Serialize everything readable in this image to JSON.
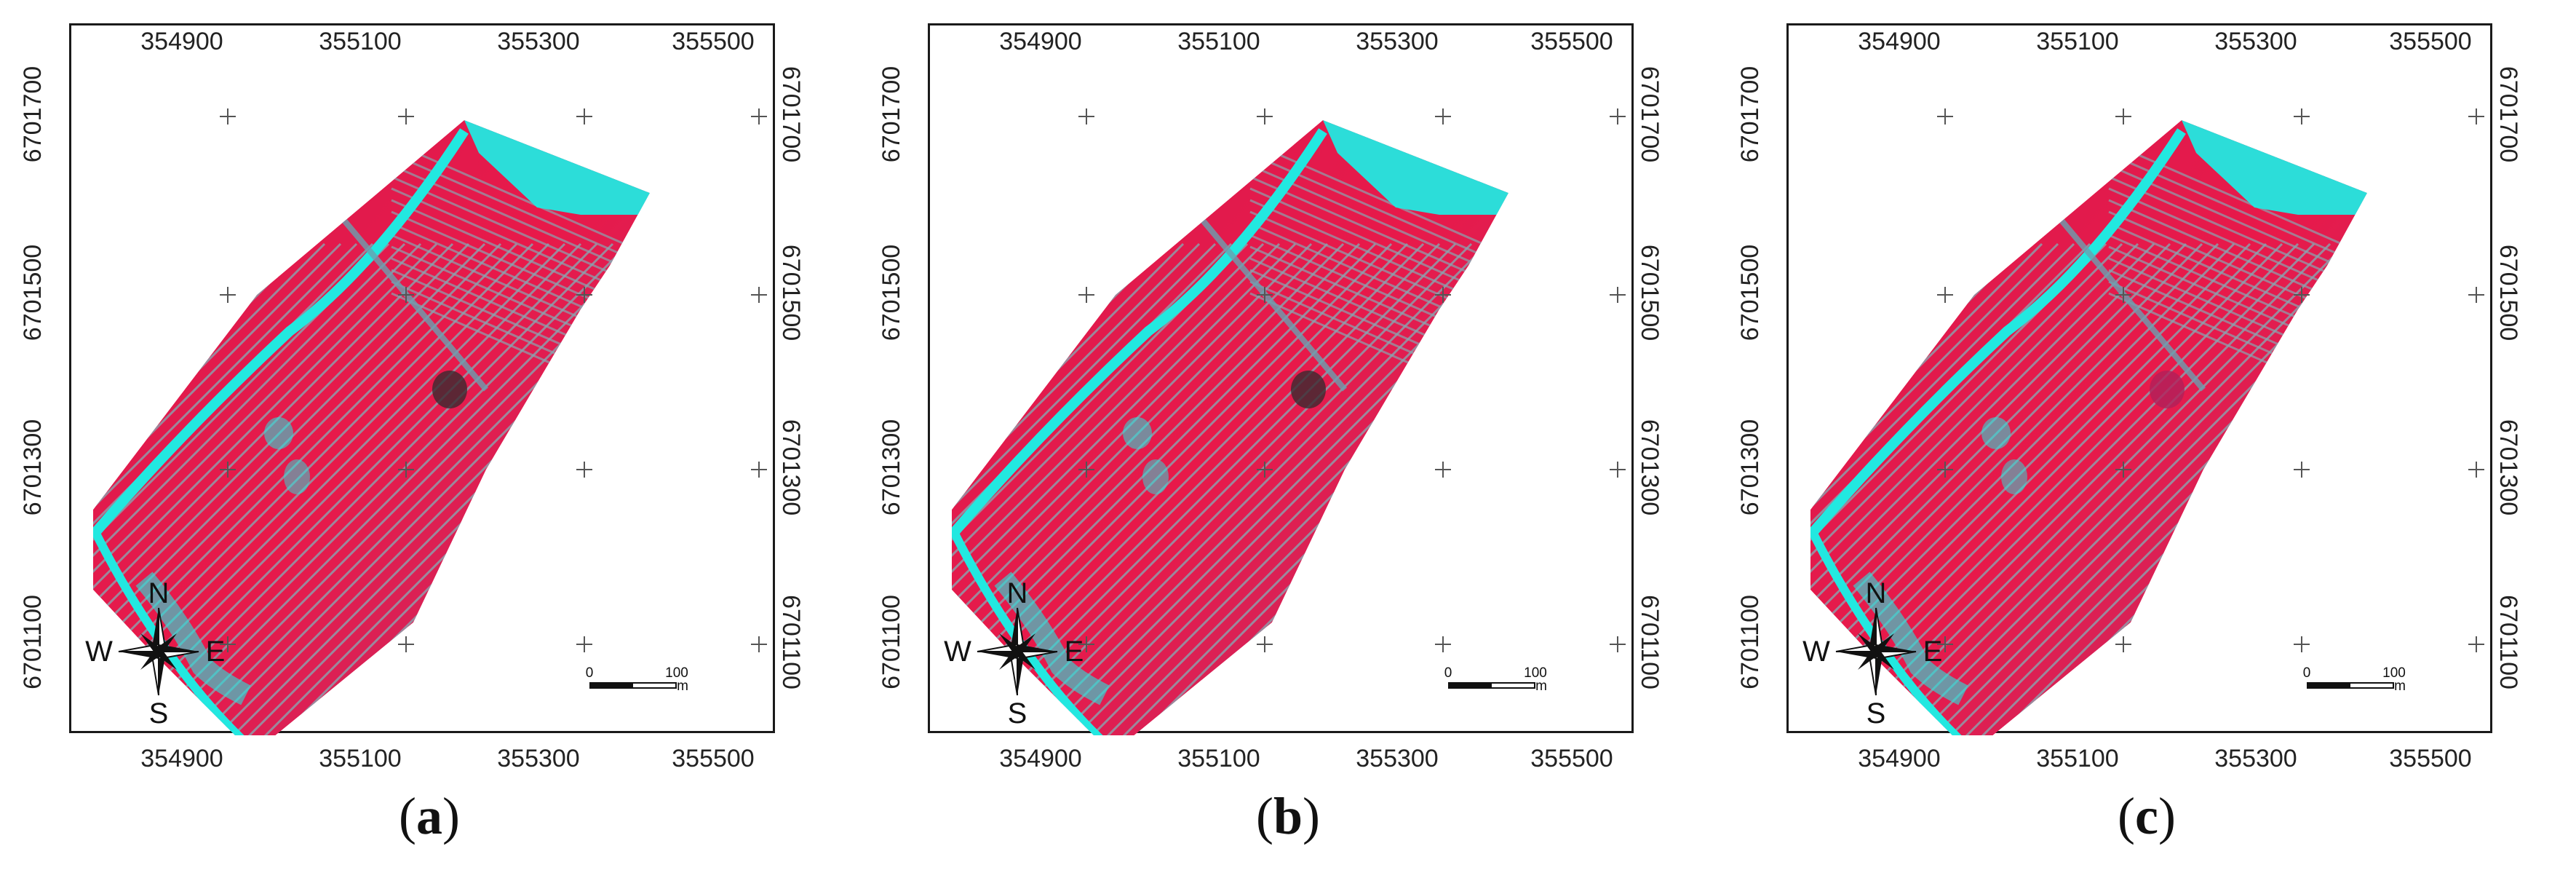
{
  "panels": [
    {
      "caption_open": "(",
      "caption_letter": "a",
      "caption_close": ")"
    },
    {
      "caption_open": "(",
      "caption_letter": "b",
      "caption_close": ")"
    },
    {
      "caption_open": "(",
      "caption_letter": "c",
      "caption_close": ")"
    }
  ],
  "axes": {
    "easting_labels": [
      "354900",
      "355100",
      "355300",
      "355500"
    ],
    "northing_labels": [
      "6701700",
      "6701500",
      "6701300",
      "6701100"
    ]
  },
  "compass": {
    "n": "N",
    "s": "S",
    "e": "E",
    "w": "W"
  },
  "scalebar": {
    "start": "0",
    "end": "100",
    "unit": "m"
  },
  "colors": {
    "vegetation": "#e8194a",
    "soil_lines": "#8aa4b0",
    "water_cyan": "#22e8e0",
    "frame": "#1a1a1a"
  },
  "icons": {
    "compass": "compass-rose-icon",
    "graticule": "plus-marker-icon"
  }
}
